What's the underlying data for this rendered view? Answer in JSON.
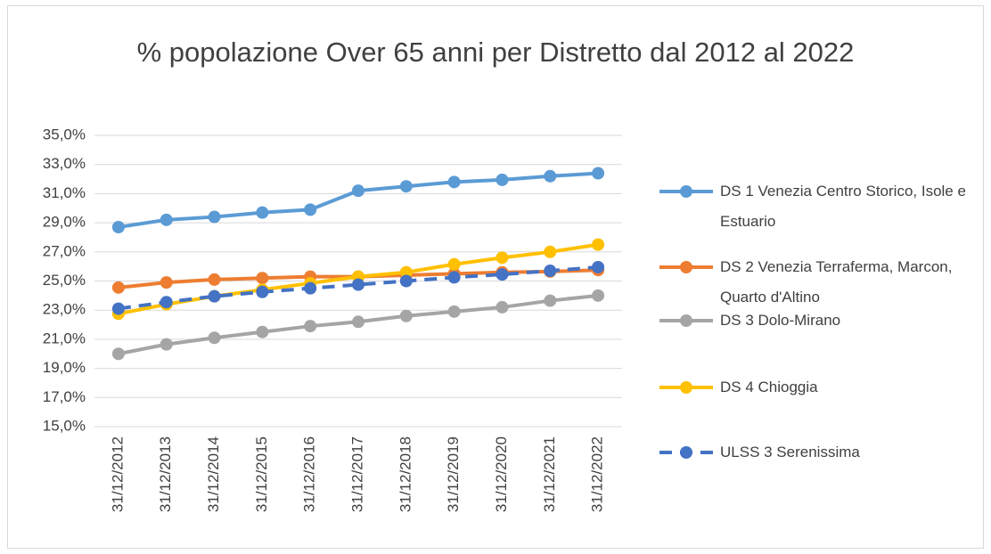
{
  "chart_data": {
    "type": "line",
    "title": "% popolazione Over 65 anni per Distretto dal 2012 al 2022",
    "categories": [
      "31/12/2012",
      "31/12/2013",
      "31/12/2014",
      "31/12/2015",
      "31/12/2016",
      "31/12/2017",
      "31/12/2018",
      "31/12/2019",
      "31/12/2020",
      "31/12/2021",
      "31/12/2022"
    ],
    "series": [
      {
        "name": "DS 1 Venezia Centro Storico, Isole e Estuario",
        "color": "#5b9bd5",
        "line_style": "solid",
        "values": [
          28.7,
          29.2,
          29.4,
          29.7,
          29.9,
          31.2,
          31.5,
          31.8,
          31.95,
          32.2,
          32.4
        ]
      },
      {
        "name": "DS 2 Venezia Terraferma, Marcon, Quarto d'Altino",
        "color": "#ed7d31",
        "line_style": "solid",
        "values": [
          24.55,
          24.9,
          25.1,
          25.2,
          25.3,
          25.3,
          25.4,
          25.5,
          25.6,
          25.65,
          25.75
        ]
      },
      {
        "name": "DS 3 Dolo-Mirano",
        "color": "#a5a5a5",
        "line_style": "solid",
        "values": [
          20.0,
          20.65,
          21.1,
          21.5,
          21.9,
          22.2,
          22.6,
          22.9,
          23.2,
          23.65,
          24.0
        ]
      },
      {
        "name": "DS 4 Chioggia",
        "color": "#ffc000",
        "line_style": "solid",
        "values": [
          22.75,
          23.4,
          23.95,
          24.4,
          24.85,
          25.3,
          25.6,
          26.15,
          26.6,
          27.0,
          27.5
        ]
      },
      {
        "name": "ULSS 3 Serenissima",
        "color": "#4472c4",
        "line_style": "dashed",
        "values": [
          23.1,
          23.55,
          23.95,
          24.25,
          24.5,
          24.75,
          25.0,
          25.25,
          25.45,
          25.7,
          25.95
        ]
      }
    ],
    "ylim": [
      15,
      35
    ],
    "yticks": [
      {
        "value": 15,
        "label": "15,0%"
      },
      {
        "value": 17,
        "label": "17,0%"
      },
      {
        "value": 19,
        "label": "19,0%"
      },
      {
        "value": 21,
        "label": "21,0%"
      },
      {
        "value": 23,
        "label": "23,0%"
      },
      {
        "value": 25,
        "label": "25,0%"
      },
      {
        "value": 27,
        "label": "27,0%"
      },
      {
        "value": 29,
        "label": "29,0%"
      },
      {
        "value": 31,
        "label": "31,0%"
      },
      {
        "value": 33,
        "label": "33,0%"
      },
      {
        "value": 35,
        "label": "35,0%"
      }
    ],
    "grid": true,
    "legend_position": "right"
  }
}
